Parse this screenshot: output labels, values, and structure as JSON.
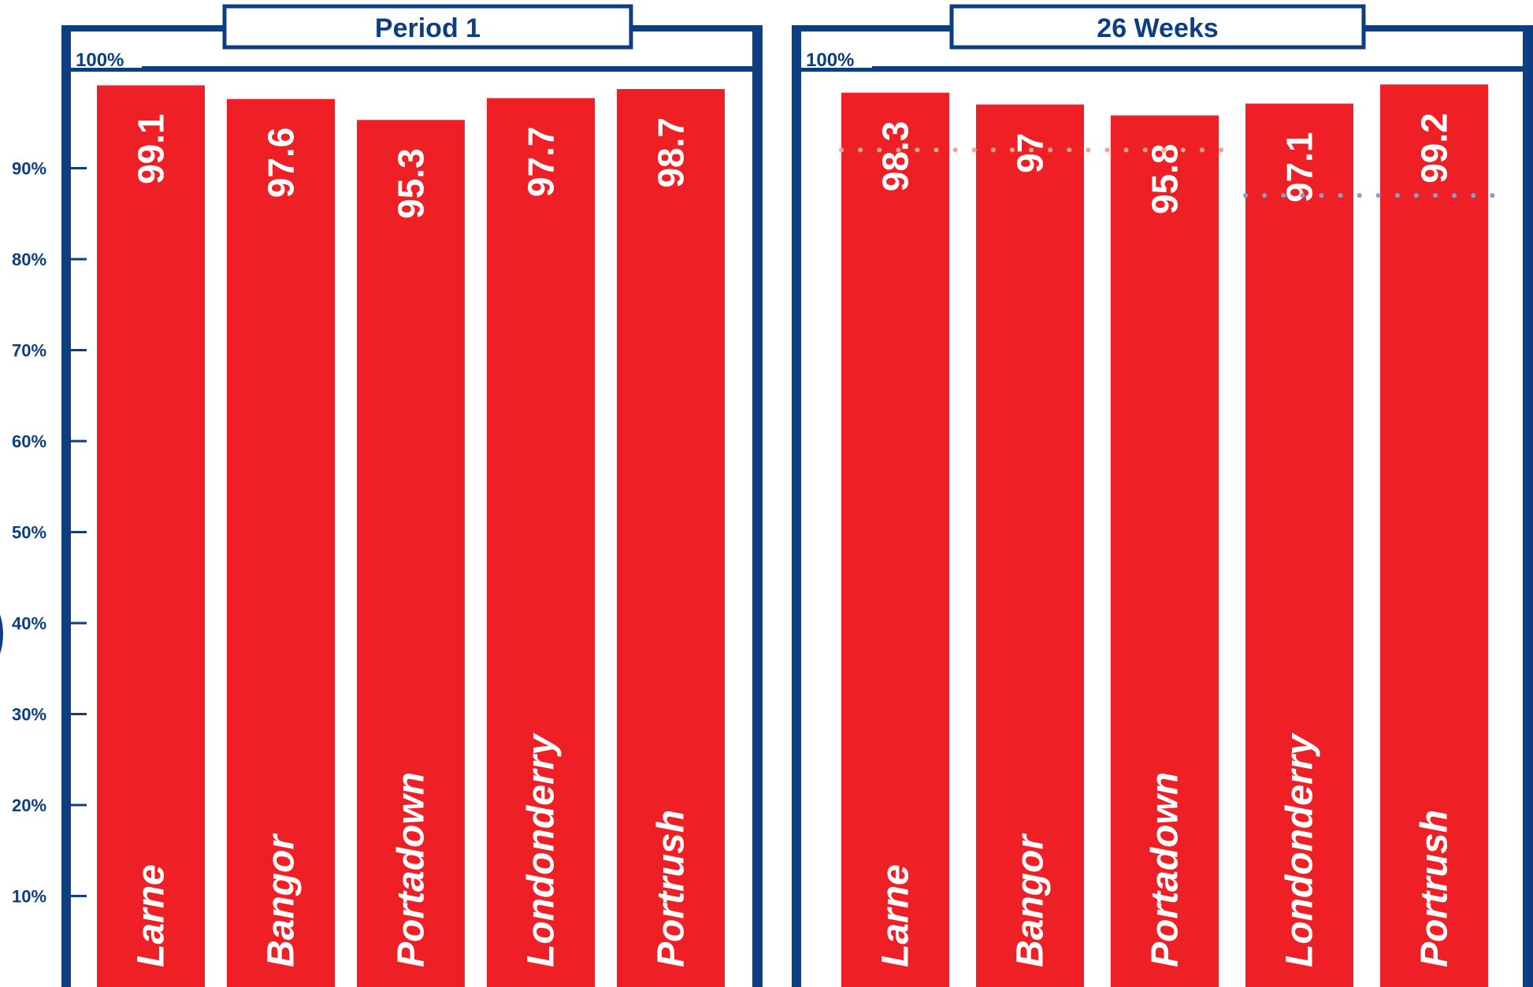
{
  "colors": {
    "frame": "#0d3e82",
    "bar": "#ee2025",
    "bar_text": "#ffffff",
    "dotted_orange": "#f4a58a",
    "dotted_blue": "#8d9cc7"
  },
  "chart_data": {
    "type": "bar",
    "ylim": [
      0,
      100
    ],
    "y_ticks": [
      "10%",
      "20%",
      "30%",
      "40%",
      "50%",
      "60%",
      "70%",
      "80%",
      "90%"
    ],
    "panels": [
      {
        "title": "Period 1",
        "top_label": "100%",
        "categories": [
          "Larne",
          "Bangor",
          "Portadown",
          "Londonderry",
          "Portrush"
        ],
        "values": [
          99.1,
          97.6,
          95.3,
          97.7,
          98.7
        ],
        "value_labels": [
          "99.1",
          "97.6",
          "95.3",
          "97.7",
          "98.7"
        ],
        "reference_lines": []
      },
      {
        "title": "26 Weeks",
        "top_label": "100%",
        "categories": [
          "Larne",
          "Bangor",
          "Portadown",
          "Londonderry",
          "Portrush"
        ],
        "values": [
          98.3,
          97,
          95.8,
          97.1,
          99.2
        ],
        "value_labels": [
          "98.3",
          "97",
          "95.8",
          "97.1",
          "99.2"
        ],
        "reference_lines": [
          {
            "value": 92,
            "from_category": 0,
            "to_category": 2,
            "style": "dotted",
            "color": "#f4a58a"
          },
          {
            "value": 87,
            "from_category": 3,
            "to_category": 4,
            "style": "dotted",
            "color": "#8d9cc7"
          }
        ]
      }
    ]
  }
}
